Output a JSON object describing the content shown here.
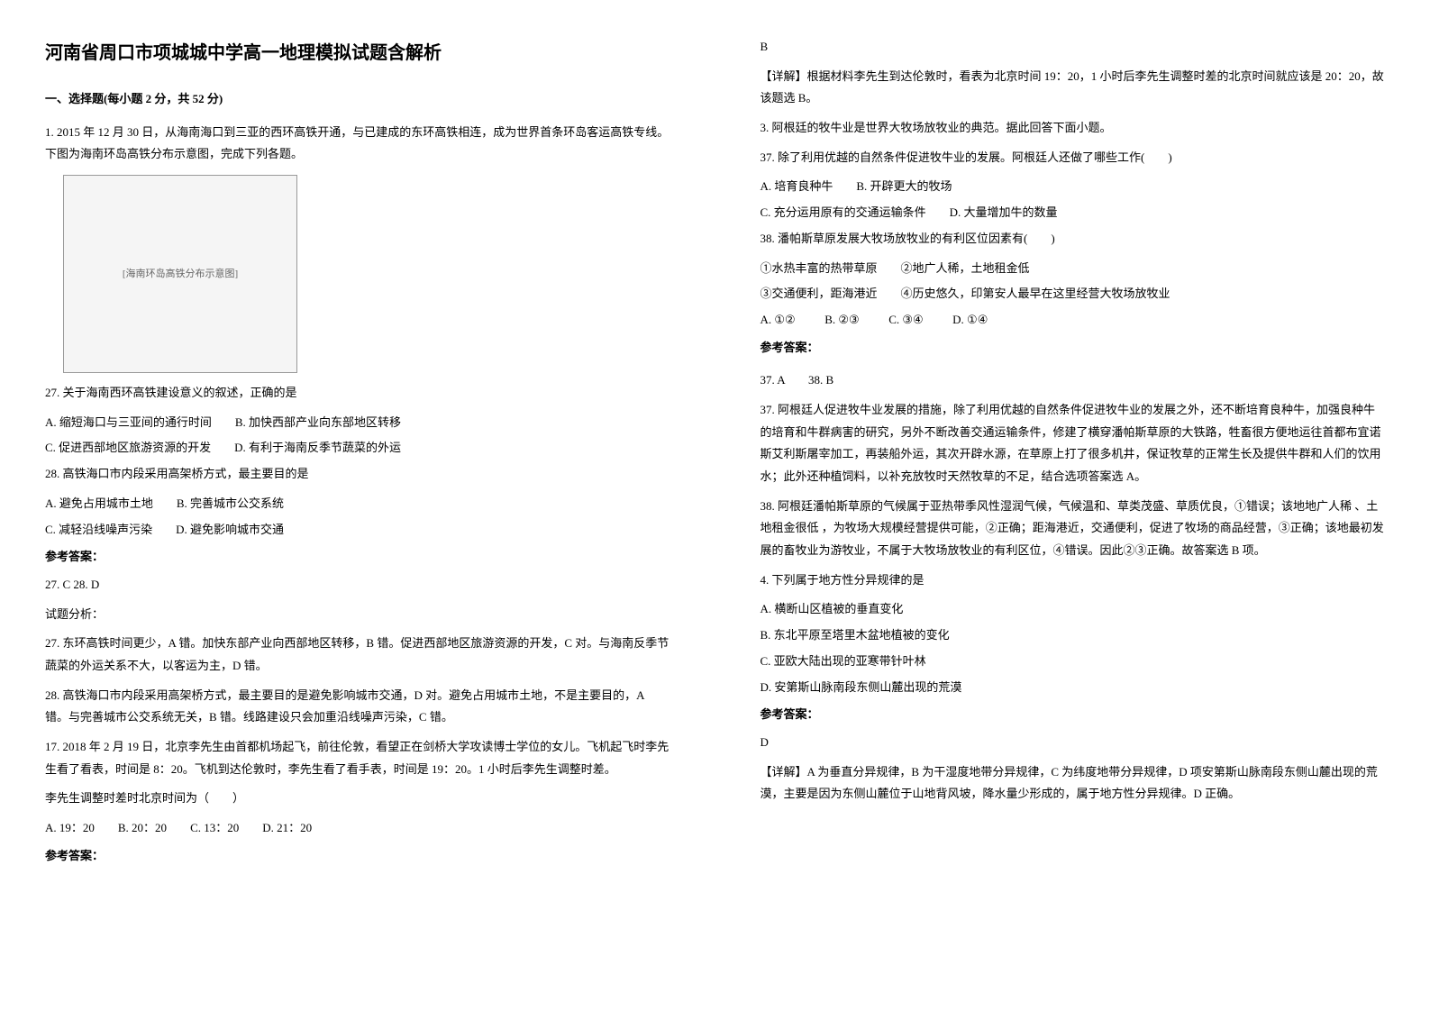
{
  "title": "河南省周口市项城城中学高一地理模拟试题含解析",
  "section_header": "一、选择题(每小题 2 分，共 52 分)",
  "q1": {
    "intro": "1. 2015 年 12 月 30 日，从海南海口到三亚的西环高铁开通，与已建成的东环高铁相连，成为世界首条环岛客运高铁专线。下图为海南环岛高铁分布示意图，完成下列各题。",
    "img_placeholder": "[海南环岛高铁分布示意图]",
    "q27": "27. 关于海南西环高铁建设意义的叙述，正确的是",
    "q27_a": "A. 缩短海口与三亚间的通行时间",
    "q27_b": "B. 加快西部产业向东部地区转移",
    "q27_c": "C. 促进西部地区旅游资源的开发",
    "q27_d": "D. 有利于海南反季节蔬菜的外运",
    "q28": "28. 高铁海口市内段采用高架桥方式，最主要目的是",
    "q28_a": "A. 避免占用城市土地",
    "q28_b": "B. 完善城市公交系统",
    "q28_c": "C. 减轻沿线噪声污染",
    "q28_d": "D. 避免影响城市交通",
    "answer_label": "参考答案：",
    "answer": "27. C        28. D",
    "analysis_label": "试题分析：",
    "analysis_27": "27. 东环高铁时间更少，A 错。加快东部产业向西部地区转移，B 错。促进西部地区旅游资源的开发，C 对。与海南反季节蔬菜的外运关系不大，以客运为主，D 错。",
    "analysis_28": "28. 高铁海口市内段采用高架桥方式，最主要目的是避免影响城市交通，D 对。避免占用城市土地，不是主要目的，A 错。与完善城市公交系统无关，B 错。线路建设只会加重沿线噪声污染，C 错。"
  },
  "q17": {
    "intro": "17. 2018 年 2 月 19 日，北京李先生由首都机场起飞，前往伦敦，看望正在剑桥大学攻读博士学位的女儿。飞机起飞时李先生看了看表，时间是 8：20。飞机到达伦敦时，李先生看了看手表，时间是 19：20。1 小时后李先生调整时差。",
    "question": "李先生调整时差时北京时间为（　　）",
    "opt_a": "A. 19：20",
    "opt_b": "B. 20：20",
    "opt_c": "C. 13：20",
    "opt_d": "D. 21：20",
    "answer_label": "参考答案：",
    "answer_letter": "B",
    "explanation": "【详解】根据材料李先生到达伦敦时，看表为北京时间 19：20，1 小时后李先生调整时差的北京时间就应该是 20：20，故该题选 B。"
  },
  "q3": {
    "intro": "3. 阿根廷的牧牛业是世界大牧场放牧业的典范。据此回答下面小题。",
    "q37": "37. 除了利用优越的自然条件促进牧牛业的发展。阿根廷人还做了哪些工作(　　)",
    "q37_a": "A. 培育良种牛",
    "q37_b": "B. 开辟更大的牧场",
    "q37_c": "C. 充分运用原有的交通运输条件",
    "q37_d": "D. 大量增加牛的数量",
    "q38": "38. 潘帕斯草原发展大牧场放牧业的有利区位因素有(　　)",
    "q38_opt1": "①水热丰富的热带草原",
    "q38_opt2": "②地广人稀，土地租金低",
    "q38_opt3": "③交通便利，距海港近",
    "q38_opt4": "④历史悠久，印第安人最早在这里经营大牧场放牧业",
    "q38_a": "A. ①②",
    "q38_b": "B. ②③",
    "q38_c": "C. ③④",
    "q38_d": "D. ①④",
    "answer_label": "参考答案：",
    "answer": "37. A　　38. B",
    "exp37": "37. 阿根廷人促进牧牛业发展的措施，除了利用优越的自然条件促进牧牛业的发展之外，还不断培育良种牛，加强良种牛的培育和牛群病害的研究，另外不断改善交通运输条件，修建了横穿潘帕斯草原的大铁路，牲畜很方便地运往首都布宜诺斯艾利斯屠宰加工，再装船外运，其次开辟水源，在草原上打了很多机井，保证牧草的正常生长及提供牛群和人们的饮用水；此外还种植饲料，以补充放牧时天然牧草的不足，结合选项答案选 A。",
    "exp38": "38. 阿根廷潘帕斯草原的气候属于亚热带季风性湿润气候，气候温和、草类茂盛、草质优良，①错误；该地地广人稀 、土地租金很低 ，为牧场大规模经营提供可能，②正确；距海港近，交通便利，促进了牧场的商品经营，③正确；该地最初发展的畜牧业为游牧业，不属于大牧场放牧业的有利区位，④错误。因此②③正确。故答案选 B 项。"
  },
  "q4": {
    "intro": "4. 下列属于地方性分异规律的是",
    "opt_a": "A. 横断山区植被的垂直变化",
    "opt_b": "B. 东北平原至塔里木盆地植被的变化",
    "opt_c": "C. 亚欧大陆出现的亚寒带针叶林",
    "opt_d": "D. 安第斯山脉南段东侧山麓出现的荒漠",
    "answer_label": "参考答案：",
    "answer_letter": "D",
    "explanation": "【详解】A 为垂直分异规律，B 为干湿度地带分异规律，C 为纬度地带分异规律，D 项安第斯山脉南段东侧山麓出现的荒漠，主要是因为东侧山麓位于山地背风坡，降水量少形成的，属于地方性分异规律。D 正确。"
  }
}
